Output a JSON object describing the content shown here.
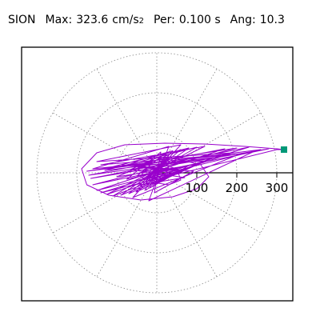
{
  "header": {
    "station": "SION",
    "max_label": "Max:",
    "max_value": "323.6",
    "max_unit": "cm/s",
    "max_unit_exp": "2",
    "per_label": "Per:",
    "per_value": "0.100 s",
    "ang_label": "Ang:",
    "ang_value": "10.3"
  },
  "colors": {
    "trace": "#9900cc",
    "marker": "#009977",
    "grid": "#888888",
    "axis": "#000000",
    "frame": "#000000"
  },
  "chart_data": {
    "type": "polar-orbit",
    "title": "",
    "radial_ticks": [
      100,
      200,
      300
    ],
    "radial_tick_labels": [
      "100",
      "200",
      "300"
    ],
    "grid_rings": [
      100,
      200,
      300
    ],
    "angular_grid_step_deg": 30,
    "rmax": 340,
    "peak_point": {
      "x": 318,
      "y": 58
    },
    "trace": [
      [
        0,
        0
      ],
      [
        10,
        4
      ],
      [
        -12,
        9
      ],
      [
        25,
        -6
      ],
      [
        -20,
        -14
      ],
      [
        30,
        12
      ],
      [
        -35,
        5
      ],
      [
        18,
        24
      ],
      [
        -10,
        -28
      ],
      [
        45,
        -2
      ],
      [
        -40,
        18
      ],
      [
        22,
        30
      ],
      [
        -28,
        -22
      ],
      [
        55,
        10
      ],
      [
        -50,
        -8
      ],
      [
        12,
        42
      ],
      [
        -18,
        -38
      ],
      [
        62,
        6
      ],
      [
        -58,
        16
      ],
      [
        30,
        40
      ],
      [
        -42,
        -30
      ],
      [
        70,
        -12
      ],
      [
        -66,
        8
      ],
      [
        24,
        48
      ],
      [
        -30,
        -44
      ],
      [
        80,
        18
      ],
      [
        -75,
        -16
      ],
      [
        10,
        52
      ],
      [
        -6,
        -50
      ],
      [
        92,
        4
      ],
      [
        -88,
        20
      ],
      [
        40,
        55
      ],
      [
        -52,
        -48
      ],
      [
        105,
        22
      ],
      [
        -100,
        -10
      ],
      [
        60,
        58
      ],
      [
        -70,
        -52
      ],
      [
        120,
        30
      ],
      [
        -115,
        14
      ],
      [
        80,
        62
      ],
      [
        -90,
        -56
      ],
      [
        140,
        38
      ],
      [
        -130,
        6
      ],
      [
        100,
        64
      ],
      [
        -110,
        -58
      ],
      [
        160,
        44
      ],
      [
        -140,
        20
      ],
      [
        120,
        66
      ],
      [
        -125,
        -54
      ],
      [
        190,
        50
      ],
      [
        -150,
        28
      ],
      [
        60,
        70
      ],
      [
        -60,
        -62
      ],
      [
        210,
        48
      ],
      [
        -160,
        10
      ],
      [
        30,
        66
      ],
      [
        -20,
        -70
      ],
      [
        240,
        52
      ],
      [
        -170,
        -6
      ],
      [
        170,
        60
      ],
      [
        -150,
        -44
      ],
      [
        260,
        58
      ],
      [
        -175,
        4
      ],
      [
        200,
        62
      ],
      [
        -160,
        -30
      ],
      [
        280,
        60
      ],
      [
        -165,
        -14
      ],
      [
        230,
        64
      ],
      [
        -140,
        -50
      ],
      [
        300,
        58
      ],
      [
        318,
        58
      ],
      [
        300,
        60
      ],
      [
        220,
        66
      ],
      [
        120,
        72
      ],
      [
        20,
        74
      ],
      [
        -80,
        70
      ],
      [
        -150,
        50
      ],
      [
        -188,
        10
      ],
      [
        -175,
        -30
      ],
      [
        -120,
        -56
      ],
      [
        -40,
        -68
      ],
      [
        40,
        -60
      ],
      [
        100,
        -40
      ],
      [
        130,
        -10
      ],
      [
        110,
        20
      ],
      [
        70,
        30
      ],
      [
        20,
        25
      ],
      [
        -30,
        10
      ],
      [
        -40,
        -10
      ],
      [
        -10,
        -24
      ],
      [
        30,
        -30
      ],
      [
        60,
        -18
      ],
      [
        50,
        10
      ],
      [
        15,
        20
      ],
      [
        -15,
        8
      ],
      [
        -20,
        -12
      ],
      [
        5,
        -18
      ],
      [
        28,
        -8
      ],
      [
        22,
        10
      ],
      [
        0,
        14
      ],
      [
        -12,
        2
      ],
      [
        -6,
        -10
      ],
      [
        8,
        -12
      ],
      [
        14,
        -2
      ],
      [
        6,
        8
      ],
      [
        -4,
        6
      ],
      [
        -6,
        -2
      ],
      [
        0,
        -5
      ],
      [
        4,
        0
      ],
      [
        0,
        2
      ],
      [
        0,
        0
      ]
    ]
  }
}
